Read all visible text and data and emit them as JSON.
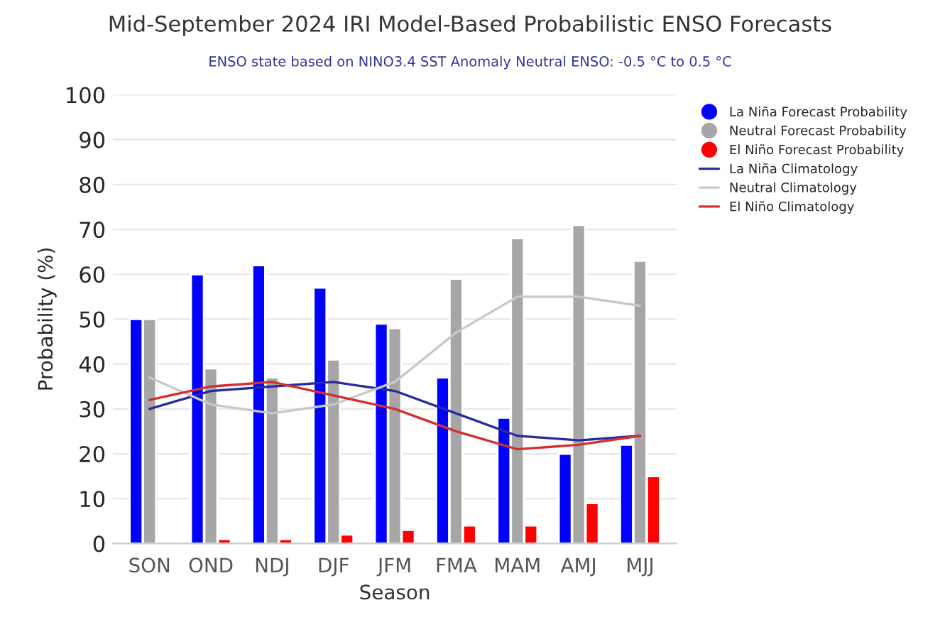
{
  "chart_data": {
    "type": "bar",
    "title": "Mid-September 2024 IRI Model-Based Probabilistic ENSO Forecasts",
    "subtitle": "ENSO state based on NINO3.4 SST Anomaly Neutral ENSO: -0.5 °C to 0.5 °C",
    "xlabel": "Season",
    "ylabel": "Probability (%)",
    "categories": [
      "SON",
      "OND",
      "NDJ",
      "DJF",
      "JFM",
      "FMA",
      "MAM",
      "AMJ",
      "MJJ"
    ],
    "series": [
      {
        "name": "La Niña Forecast Probability",
        "color": "#0000ff",
        "values": [
          50,
          60,
          62,
          57,
          49,
          37,
          28,
          20,
          22
        ]
      },
      {
        "name": "Neutral Forecast Probability",
        "color": "#a6a6a6",
        "values": [
          50,
          39,
          37,
          41,
          48,
          59,
          68,
          71,
          63
        ]
      },
      {
        "name": "El Niño Forecast Probability",
        "color": "#ff0000",
        "values": [
          null,
          1,
          1,
          2,
          3,
          4,
          4,
          9,
          15
        ]
      },
      {
        "name": "La Niña Climatology",
        "type": "line",
        "color": "#2a2aa0",
        "values": [
          30,
          34,
          35,
          36,
          34,
          29,
          24,
          23,
          24
        ]
      },
      {
        "name": "Neutral Climatology",
        "type": "line",
        "color": "#c8c8c8",
        "values": [
          37,
          31,
          29,
          31,
          36,
          47,
          55,
          55,
          53
        ]
      },
      {
        "name": "El Niño Climatology",
        "type": "line",
        "color": "#d03030",
        "values": [
          32,
          35,
          36,
          33,
          30,
          25,
          21,
          22,
          24
        ]
      }
    ],
    "ylim": [
      0,
      100
    ],
    "yticks": [
      0,
      10,
      20,
      30,
      40,
      50,
      60,
      70,
      80,
      90,
      100
    ],
    "grid": "y",
    "legend": "top right",
    "marker": "none"
  }
}
